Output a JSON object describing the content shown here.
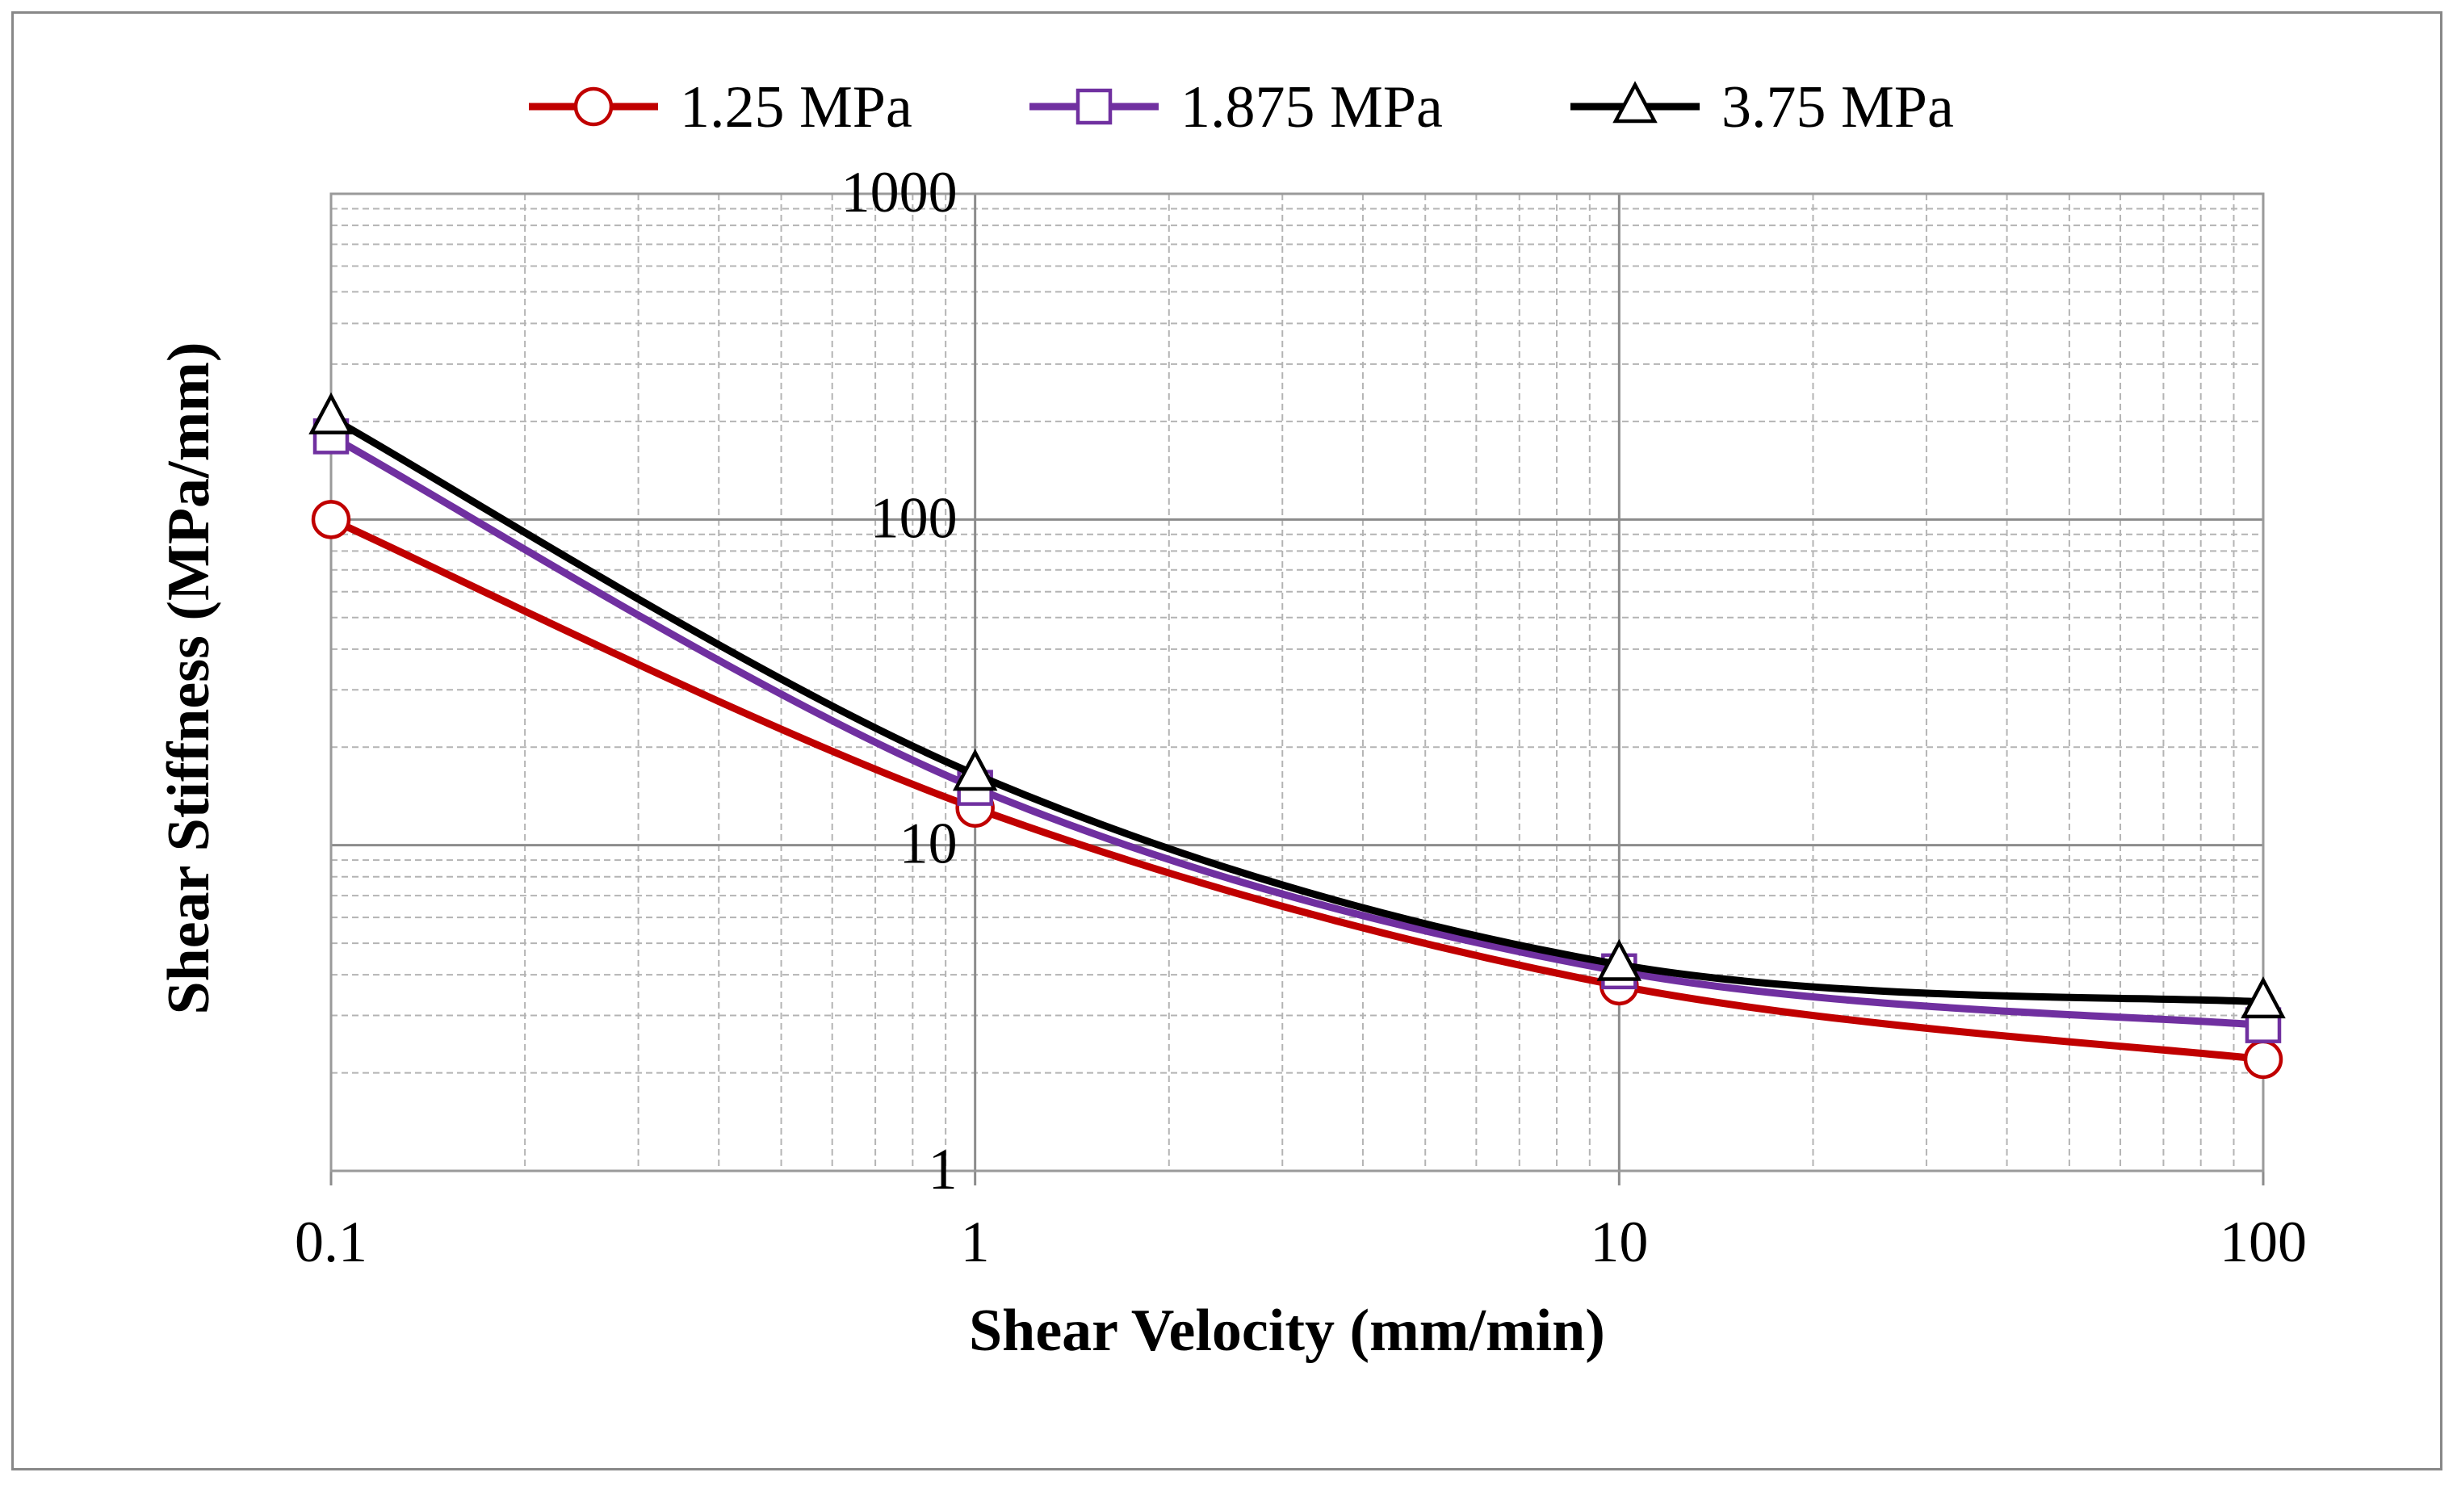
{
  "chart_data": {
    "type": "line",
    "xscale": "log",
    "yscale": "log",
    "xlabel": "Shear Velocity (mm/min)",
    "ylabel": "Shear Stiffness (MPa/mm)",
    "xlim": [
      0.1,
      100
    ],
    "ylim": [
      1,
      1000
    ],
    "x": [
      0.1,
      1,
      10,
      100
    ],
    "xticks": [
      "0.1",
      "1",
      "10",
      "100"
    ],
    "yticks": [
      "1",
      "10",
      "100",
      "1000"
    ],
    "grid": true,
    "legend_position": "top",
    "series": [
      {
        "name": "1.25 MPa",
        "values": [
          100,
          13,
          3.7,
          2.2
        ],
        "color": "#c00000",
        "marker": "circle"
      },
      {
        "name": "1.875 MPa",
        "values": [
          180,
          15,
          4.1,
          2.8
        ],
        "color": "#7030a0",
        "marker": "square"
      },
      {
        "name": "3.75 MPa",
        "values": [
          205,
          16.5,
          4.3,
          3.3
        ],
        "color": "#000000",
        "marker": "triangle"
      }
    ]
  }
}
